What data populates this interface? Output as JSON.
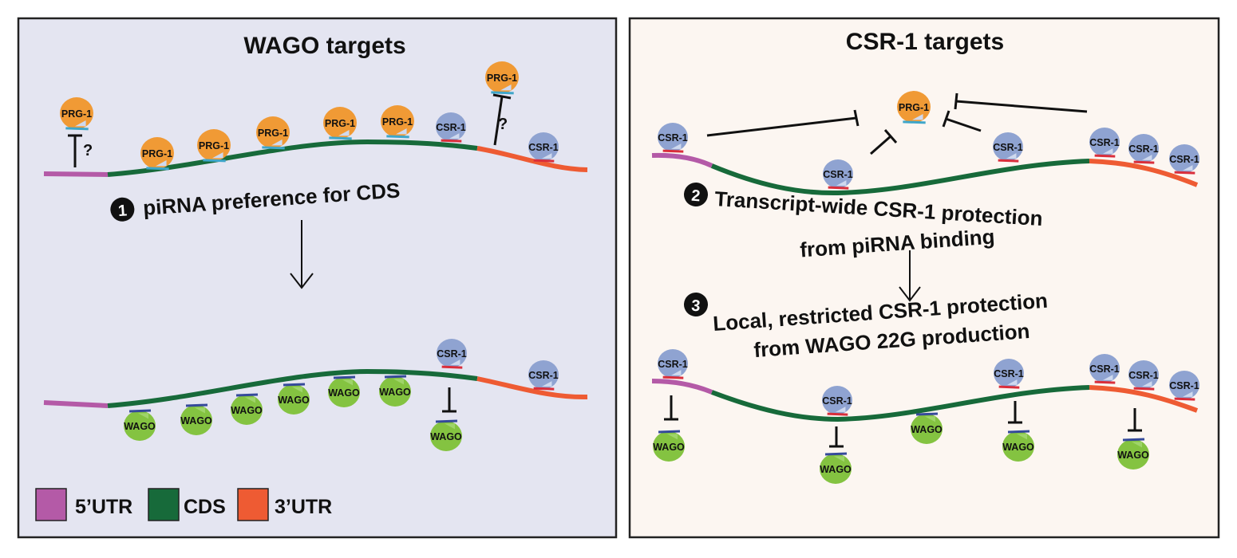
{
  "colors": {
    "left_panel_bg": "#e4e5f1",
    "right_panel_bg": "#fcf6f1",
    "utr5": "#b45aa7",
    "cds": "#176a3a",
    "utr3": "#ee5b33",
    "prg1": "#f09a35",
    "csr1": "#8fa3d1",
    "wago": "#84c341",
    "pirna": "#3fa6c9",
    "csr_rna": "#d92e3b",
    "wago_rna": "#354a9a"
  },
  "left_panel": {
    "title": "WAGO targets",
    "step1_number": "1",
    "step1_text": "piRNA preference for CDS",
    "question_mark": "?"
  },
  "right_panel": {
    "title": "CSR-1 targets",
    "step2_number": "2",
    "step2_line1": "Transcript-wide CSR-1 protection",
    "step2_line2": "from piRNA binding",
    "step3_number": "3",
    "step3_line1": "Local, restricted CSR-1 protection",
    "step3_line2": "from WAGO 22G production"
  },
  "proteins": {
    "prg1": "PRG-1",
    "csr1": "CSR-1",
    "wago": "WAGO"
  },
  "legend": {
    "utr5": "5’UTR",
    "cds": "CDS",
    "utr3": "3’UTR"
  }
}
